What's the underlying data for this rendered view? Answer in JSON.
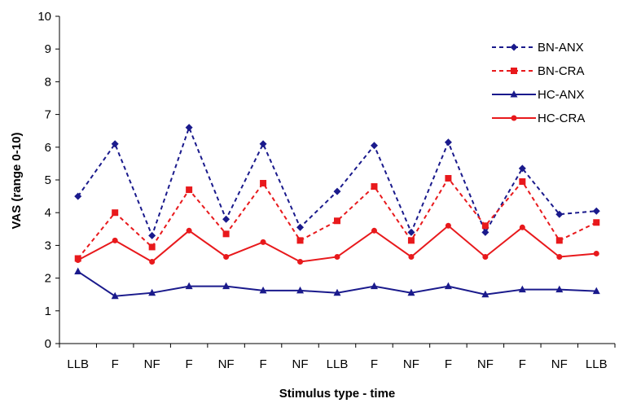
{
  "chart_data": {
    "type": "line",
    "title": "",
    "xlabel": "Stimulus type - time",
    "ylabel": "VAS (range 0-10)",
    "ylim": [
      0,
      10
    ],
    "yticks": [
      "0",
      "1",
      "2",
      "3",
      "4",
      "5",
      "6",
      "7",
      "8",
      "9",
      "10"
    ],
    "categories": [
      "LLB",
      "F",
      "NF",
      "F",
      "NF",
      "F",
      "NF",
      "LLB",
      "F",
      "NF",
      "F",
      "NF",
      "F",
      "NF",
      "LLB"
    ],
    "grid": false,
    "legend_position": "top-right",
    "series": [
      {
        "name": "BN-ANX",
        "color": "#1a1a8c",
        "dash": true,
        "marker": "diamond",
        "values": [
          4.5,
          6.1,
          3.3,
          6.6,
          3.8,
          6.1,
          3.55,
          4.65,
          6.05,
          3.4,
          6.15,
          3.4,
          5.35,
          3.95,
          4.05
        ]
      },
      {
        "name": "BN-CRA",
        "color": "#e8191c",
        "dash": true,
        "marker": "square",
        "values": [
          2.6,
          4.0,
          2.95,
          4.7,
          3.35,
          4.9,
          3.15,
          3.75,
          4.8,
          3.15,
          5.05,
          3.6,
          4.95,
          3.15,
          3.7
        ]
      },
      {
        "name": "HC-ANX",
        "color": "#1a1a8c",
        "dash": false,
        "marker": "triangle",
        "values": [
          2.2,
          1.45,
          1.55,
          1.75,
          1.75,
          1.62,
          1.62,
          1.55,
          1.75,
          1.55,
          1.75,
          1.5,
          1.65,
          1.65,
          1.6
        ]
      },
      {
        "name": "HC-CRA",
        "color": "#e8191c",
        "dash": false,
        "marker": "circle",
        "values": [
          2.55,
          3.15,
          2.5,
          3.45,
          2.65,
          3.1,
          2.5,
          2.65,
          3.45,
          2.65,
          3.6,
          2.65,
          3.55,
          2.65,
          2.75
        ]
      }
    ]
  }
}
